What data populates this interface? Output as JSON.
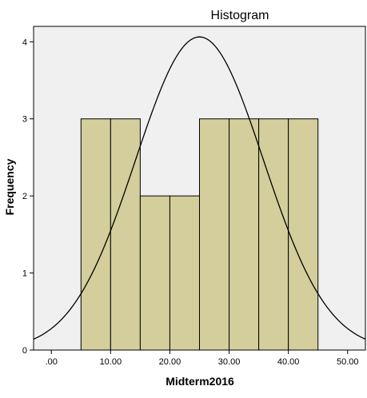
{
  "chart_data": {
    "type": "bar",
    "title": "Histogram",
    "xlabel": "Midterm2016",
    "ylabel": "Frequency",
    "xlim": [
      -3,
      53
    ],
    "ylim": [
      0,
      4.2
    ],
    "x_ticks": [
      {
        "value": 0,
        "label": ".00"
      },
      {
        "value": 10,
        "label": "10.00"
      },
      {
        "value": 20,
        "label": "20.00"
      },
      {
        "value": 30,
        "label": "30.00"
      },
      {
        "value": 40,
        "label": "40.00"
      },
      {
        "value": 50,
        "label": "50.00"
      }
    ],
    "y_ticks": [
      {
        "value": 0,
        "label": "0"
      },
      {
        "value": 1,
        "label": "1"
      },
      {
        "value": 2,
        "label": "2"
      },
      {
        "value": 3,
        "label": "3"
      },
      {
        "value": 4,
        "label": "4"
      }
    ],
    "bins": [
      {
        "start": 5,
        "end": 10,
        "count": 3
      },
      {
        "start": 10,
        "end": 15,
        "count": 3
      },
      {
        "start": 15,
        "end": 20,
        "count": 2
      },
      {
        "start": 20,
        "end": 25,
        "count": 2
      },
      {
        "start": 25,
        "end": 30,
        "count": 3
      },
      {
        "start": 30,
        "end": 35,
        "count": 3
      },
      {
        "start": 35,
        "end": 40,
        "count": 3
      },
      {
        "start": 40,
        "end": 45,
        "count": 3
      }
    ],
    "normal_curve": {
      "mean": 25,
      "std_dev": 10.8,
      "n": 22,
      "bin_width": 5
    },
    "grid": false,
    "colors": {
      "bar_fill": "#d3ce9b",
      "bar_stroke": "#000000",
      "plot_background": "#f0f0f0",
      "curve": "#000000"
    }
  }
}
